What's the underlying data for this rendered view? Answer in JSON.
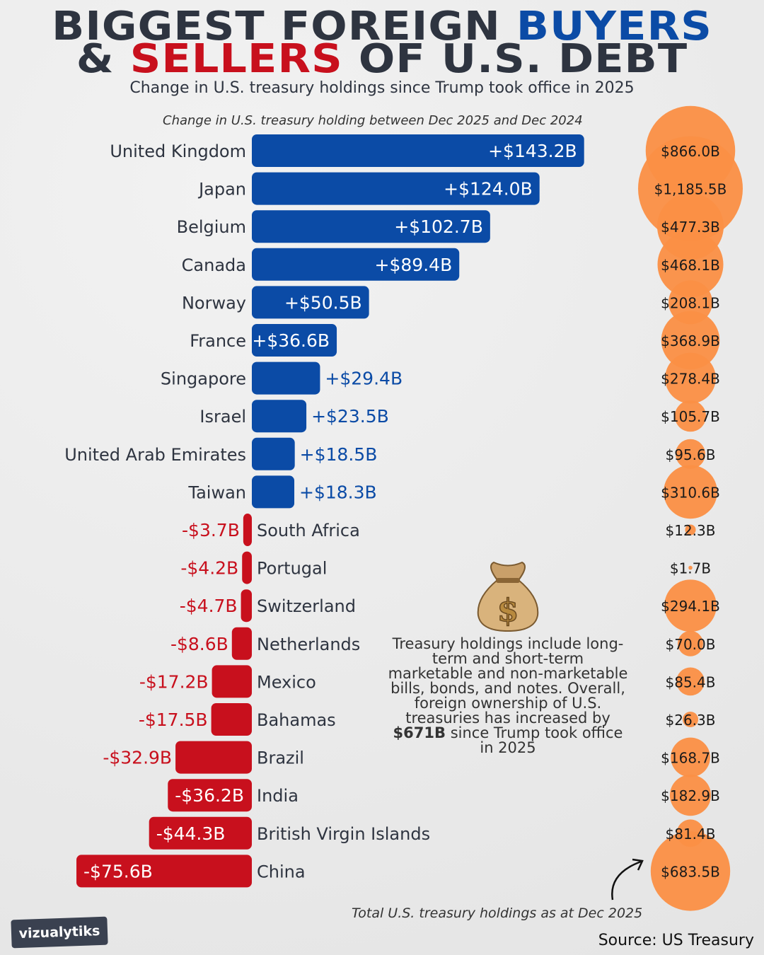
{
  "title": {
    "line1_a": "BIGGEST FOREIGN ",
    "line1_b": "BUYERS",
    "line2_a": "& ",
    "line2_b": "SELLERS",
    "line2_c": " OF U.S. DEBT"
  },
  "subtitle": "Change in U.S. treasury holdings since Trump took office in 2025",
  "annotation": {
    "part1": "Treasury holdings include long-term and short-term marketable and non-marketable bills, bonds, and notes. Overall, foreign ownership of U.S. treasuries has increased by ",
    "bold": "$671B",
    "part2": " since Trump took office in 2025"
  },
  "footnote": "Total U.S. treasury holdings as at Dec 2025",
  "source": "Source: US Treasury",
  "logo": "vizualytiks",
  "icons": {
    "money_bag": "money-bag-icon",
    "arrow": "curved-arrow-icon"
  },
  "colors": {
    "positive": "#0b4ba6",
    "negative": "#c8101d",
    "bubble": "#fb8f45",
    "text": "#2e3440"
  },
  "chart_data": [
    {
      "type": "bar",
      "orientation": "horizontal",
      "title": "Change in U.S. treasury holding between Dec 2025 and Dec 2024",
      "unit": "$B",
      "categories": [
        "United Kingdom",
        "Japan",
        "Belgium",
        "Canada",
        "Norway",
        "France",
        "Singapore",
        "Israel",
        "United Arab Emirates",
        "Taiwan",
        "South Africa",
        "Portugal",
        "Switzerland",
        "Netherlands",
        "Mexico",
        "Bahamas",
        "Brazil",
        "India",
        "British Virgin Islands",
        "China"
      ],
      "values": [
        143.2,
        124.0,
        102.7,
        89.4,
        50.5,
        36.6,
        29.4,
        23.5,
        18.5,
        18.3,
        -3.7,
        -4.2,
        -4.7,
        -8.6,
        -17.2,
        -17.5,
        -32.9,
        -36.2,
        -44.3,
        -75.6
      ],
      "labels": [
        "+$143.2B",
        "+$124.0B",
        "+$102.7B",
        "+$89.4B",
        "+$50.5B",
        "+$36.6B",
        "+$29.4B",
        "+$23.5B",
        "+$18.5B",
        "+$18.3B",
        "-$3.7B",
        "-$4.2B",
        "-$4.7B",
        "-$8.6B",
        "-$17.2B",
        "-$17.5B",
        "-$32.9B",
        "-$36.2B",
        "-$44.3B",
        "-$75.6B"
      ]
    },
    {
      "type": "bubble",
      "title": "Total U.S. treasury holdings as at Dec 2025",
      "unit": "$B",
      "categories": [
        "United Kingdom",
        "Japan",
        "Belgium",
        "Canada",
        "Norway",
        "France",
        "Singapore",
        "Israel",
        "United Arab Emirates",
        "Taiwan",
        "South Africa",
        "Portugal",
        "Switzerland",
        "Netherlands",
        "Mexico",
        "Bahamas",
        "Brazil",
        "India",
        "British Virgin Islands",
        "China"
      ],
      "values": [
        866.0,
        1185.5,
        477.3,
        468.1,
        208.1,
        368.9,
        278.4,
        105.7,
        95.6,
        310.6,
        12.3,
        1.7,
        294.1,
        70.0,
        85.4,
        26.3,
        168.7,
        182.9,
        81.4,
        683.5
      ],
      "labels": [
        "$866.0B",
        "$1,185.5B",
        "$477.3B",
        "$468.1B",
        "$208.1B",
        "$368.9B",
        "$278.4B",
        "$105.7B",
        "$95.6B",
        "$310.6B",
        "$12.3B",
        "$1.7B",
        "$294.1B",
        "$70.0B",
        "$85.4B",
        "$26.3B",
        "$168.7B",
        "$182.9B",
        "$81.4B",
        "$683.5B"
      ]
    }
  ]
}
